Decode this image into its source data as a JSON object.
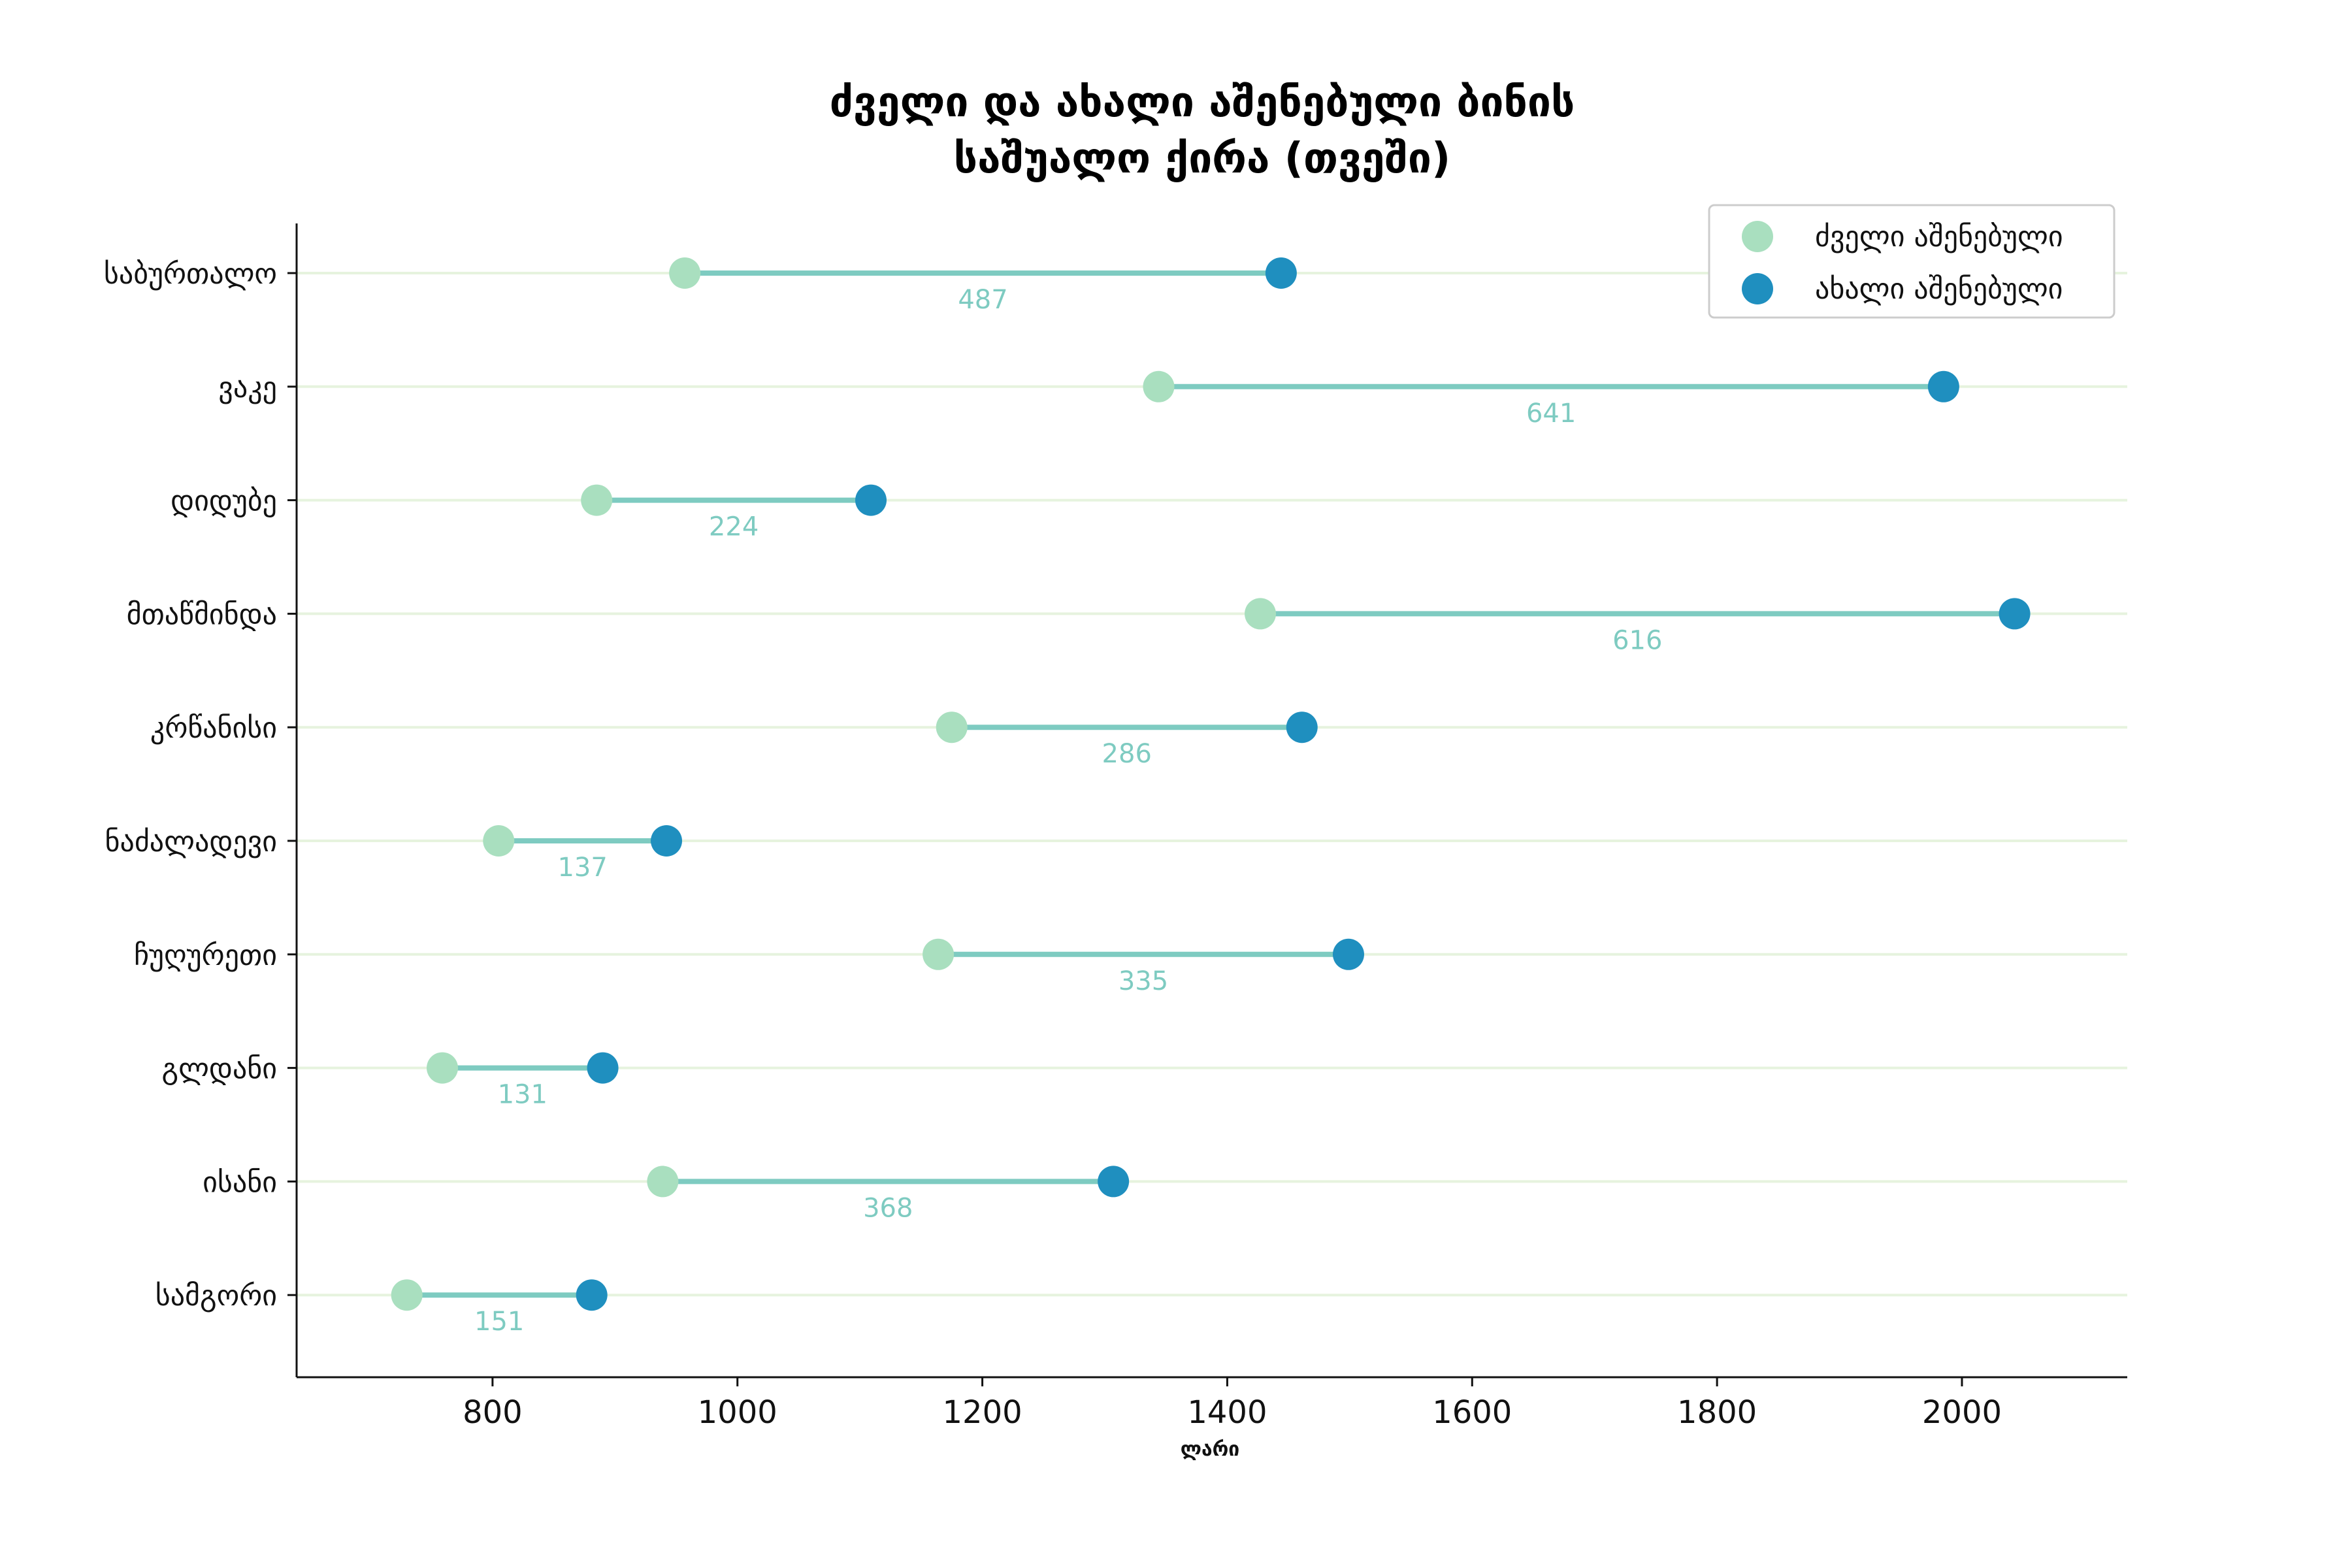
{
  "chart_data": {
    "type": "dumbbell",
    "title": "ძველი და ახალი აშენებული ბინის\nსაშუალო ქირა (თვეში)",
    "xlabel": "ლარი",
    "xlim": [
      640,
      2135
    ],
    "xticks": [
      800,
      1000,
      1200,
      1400,
      1600,
      1800,
      2000
    ],
    "grid": "horizontal",
    "legend_position": "top-right",
    "categories": [
      "საბურთალო",
      "ვაკე",
      "დიდუბე",
      "მთაწმინდა",
      "კრწანისი",
      "ნაძალადევი",
      "ჩუღურეთი",
      "გლდანი",
      "ისანი",
      "სამგორი"
    ],
    "series": [
      {
        "name": "ძველი აშენებული",
        "color": "#a9dfbf",
        "values": [
          957,
          1344,
          885,
          1427,
          1175,
          805,
          1164,
          759,
          939,
          730
        ]
      },
      {
        "name": "ახალი აშენებული",
        "color": "#1f8fbf",
        "values": [
          1444,
          1985,
          1109,
          2043,
          1461,
          942,
          1499,
          890,
          1307,
          881
        ]
      }
    ],
    "differences": [
      "487",
      "641",
      "224",
      "616",
      "286",
      "137",
      "335",
      "131",
      "368",
      "151"
    ],
    "colors": {
      "connector": "#7ecbc1",
      "grid": "#e6f3de",
      "diff_label": "#7ecbc1"
    }
  }
}
